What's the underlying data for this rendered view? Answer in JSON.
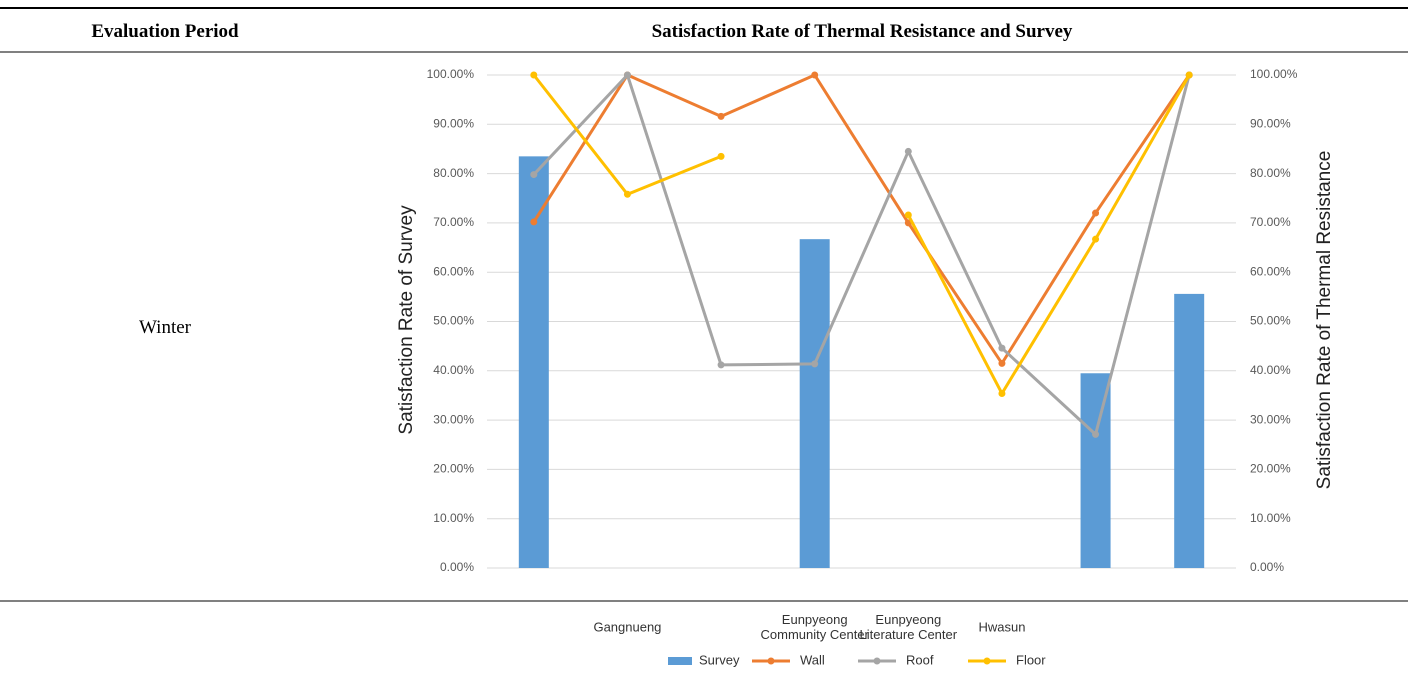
{
  "header": {
    "columns": [
      "Evaluation Period",
      "Satisfaction Rate of Thermal Resistance and Survey"
    ]
  },
  "row": {
    "period": "Winter"
  },
  "chart_data": {
    "type": "bar-line",
    "y_label": "Satisfaction Rate of Survey",
    "y2_label": "Satisfaction Rate of Thermal Resistance",
    "categories": [
      null,
      "Gangnueng",
      null,
      "Eunpyeong Community Center",
      "Eunpyeong Literature Center",
      "Hwasun",
      null,
      null
    ],
    "ylim": [
      0,
      100
    ],
    "y2lim": [
      0,
      100
    ],
    "yticks": [
      {
        "value": 0,
        "label": "0.00%"
      },
      {
        "value": 10,
        "label": "10.00%"
      },
      {
        "value": 20,
        "label": "20.00%"
      },
      {
        "value": 30,
        "label": "30.00%"
      },
      {
        "value": 40,
        "label": "40.00%"
      },
      {
        "value": 50,
        "label": "50.00%"
      },
      {
        "value": 60,
        "label": "60.00%"
      },
      {
        "value": 70,
        "label": "70.00%"
      },
      {
        "value": 80,
        "label": "80.00%"
      },
      {
        "value": 90,
        "label": "90.00%"
      },
      {
        "value": 100,
        "label": "100.00%"
      }
    ],
    "y2ticks": [
      {
        "value": 0,
        "label": "0.00%"
      },
      {
        "value": 10,
        "label": "10.00%"
      },
      {
        "value": 20,
        "label": "20.00%"
      },
      {
        "value": 30,
        "label": "30.00%"
      },
      {
        "value": 40,
        "label": "40.00%"
      },
      {
        "value": 50,
        "label": "50.00%"
      },
      {
        "value": 60,
        "label": "60.00%"
      },
      {
        "value": 70,
        "label": "70.00%"
      },
      {
        "value": 80,
        "label": "80.00%"
      },
      {
        "value": 90,
        "label": "90.00%"
      },
      {
        "value": 100,
        "label": "100.00%"
      }
    ],
    "grid": true,
    "series": [
      {
        "name": "Survey",
        "type": "bar",
        "color": "#5b9bd5",
        "values": [
          83.5,
          null,
          null,
          66.7,
          null,
          null,
          39.5,
          55.6
        ]
      },
      {
        "name": "Wall",
        "type": "line",
        "axis": "y2",
        "color": "#ed7d31",
        "values": [
          70.2,
          100,
          91.6,
          100,
          70,
          41.5,
          72,
          100
        ]
      },
      {
        "name": "Roof",
        "type": "line",
        "axis": "y2",
        "color": "#a5a5a5",
        "values": [
          79.8,
          100,
          41.2,
          41.4,
          84.5,
          44.6,
          27.1,
          100
        ]
      },
      {
        "name": "Floor",
        "type": "line",
        "axis": "y2",
        "color": "#ffc000",
        "values": [
          100,
          75.8,
          83.5,
          null,
          71.6,
          35.4,
          66.7,
          100
        ]
      }
    ]
  }
}
